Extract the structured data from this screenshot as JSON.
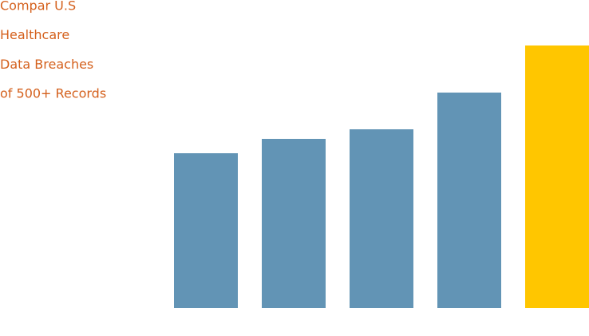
{
  "chart_data": {
    "type": "bar",
    "title": [
      "Compar U.S",
      "Healthcare",
      "Data Breaches",
      "of 500+ Records"
    ],
    "values": [
      194,
      212,
      224,
      270,
      329
    ],
    "colors": [
      "#6294b5",
      "#6294b5",
      "#6294b5",
      "#6294b5",
      "#ffc600"
    ],
    "ylim": [
      0,
      330
    ]
  }
}
